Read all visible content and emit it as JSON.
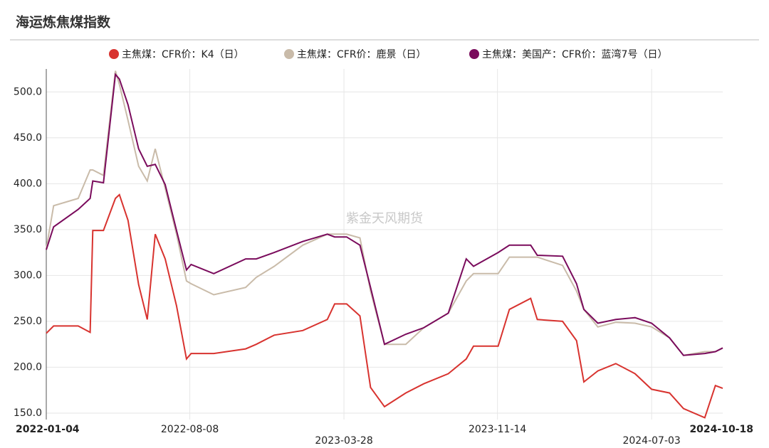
{
  "chart_data": {
    "type": "line",
    "title": "海运炼焦煤指数",
    "watermark": "紫金天风期货",
    "x": [
      "2022-01-04",
      "2022-01-15",
      "2022-02-21",
      "2022-03-11",
      "2022-03-15",
      "2022-03-31",
      "2022-04-18",
      "2022-04-24",
      "2022-05-07",
      "2022-05-23",
      "2022-06-05",
      "2022-06-17",
      "2022-07-02",
      "2022-07-19",
      "2022-08-03",
      "2022-08-10",
      "2022-09-13",
      "2022-10-31",
      "2022-11-16",
      "2022-12-13",
      "2023-01-25",
      "2023-03-03",
      "2023-03-14",
      "2023-04-01",
      "2023-04-21",
      "2023-05-07",
      "2023-05-28",
      "2023-06-29",
      "2023-07-26",
      "2023-09-01",
      "2023-09-28",
      "2023-10-09",
      "2023-11-15",
      "2023-12-02",
      "2024-01-03",
      "2024-01-13",
      "2024-02-20",
      "2024-03-12",
      "2024-03-23",
      "2024-04-13",
      "2024-05-10",
      "2024-06-08",
      "2024-07-03",
      "2024-07-30",
      "2024-08-20",
      "2024-09-21",
      "2024-10-07",
      "2024-10-18"
    ],
    "series": [
      {
        "name": "主焦煤：CFR价：K4（日）",
        "color": "#d8332f",
        "values": [
          237,
          245,
          245,
          238,
          349,
          349,
          384,
          388,
          360,
          290,
          252,
          345,
          318,
          267,
          209,
          215,
          215,
          220,
          225,
          235,
          240,
          252,
          269,
          269,
          256,
          178,
          157,
          172,
          182,
          193,
          209,
          223,
          223,
          263,
          275,
          252,
          250,
          229,
          184,
          196,
          204,
          193,
          176,
          172,
          155,
          145,
          180,
          177
        ]
      },
      {
        "name": "主焦煤：CFR价：鹿景（日）",
        "color": "#c9bba9",
        "values": [
          329,
          376,
          384,
          415,
          415,
          409,
          523,
          508,
          469,
          419,
          403,
          438,
          395,
          345,
          294,
          291,
          279,
          287,
          298,
          310,
          333,
          345,
          345,
          345,
          341,
          283,
          225,
          225,
          243,
          259,
          294,
          302,
          302,
          320,
          320,
          320,
          311,
          283,
          263,
          244,
          249,
          248,
          244,
          232,
          213,
          217,
          217,
          221
        ]
      },
      {
        "name": "主焦煤：美国产：CFR价：蓝湾7号（日）",
        "color": "#7a0b5c",
        "values": [
          328,
          353,
          372,
          384,
          403,
          401,
          519,
          514,
          486,
          438,
          419,
          421,
          399,
          349,
          306,
          312,
          302,
          318,
          318,
          325,
          337,
          345,
          342,
          342,
          333,
          287,
          225,
          236,
          243,
          259,
          318,
          310,
          325,
          333,
          333,
          322,
          321,
          291,
          263,
          248,
          252,
          254,
          248,
          232,
          213,
          215,
          217,
          221
        ]
      }
    ],
    "xlim": [
      "2022-01-04",
      "2024-10-18"
    ],
    "xticks": [
      "2022-01-04",
      "2022-08-08",
      "2023-03-28",
      "2023-11-14",
      "2024-07-03",
      "2024-10-18"
    ],
    "ylim": [
      143,
      525
    ],
    "yticks": [
      {
        "value": 150,
        "label": "150.0"
      },
      {
        "value": 200,
        "label": "200.0"
      },
      {
        "value": 250,
        "label": "250.0"
      },
      {
        "value": 300,
        "label": "300.0"
      },
      {
        "value": 350,
        "label": "350.0"
      },
      {
        "value": 400,
        "label": "400.0"
      },
      {
        "value": 450,
        "label": "450.0"
      },
      {
        "value": 500,
        "label": "500.0"
      }
    ],
    "grid": true
  }
}
